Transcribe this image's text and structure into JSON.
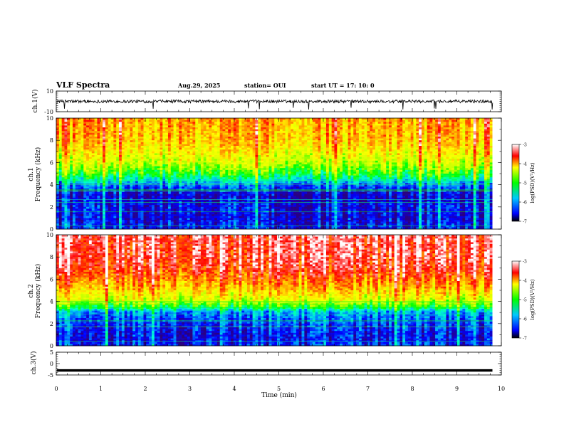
{
  "header": {
    "title": "VLF Spectra",
    "date": "Aug.29, 2025",
    "station": "station= OUI",
    "start_ut": "start  UT =   17: 10: 0"
  },
  "chart_data": [
    {
      "id": "ch1-waveform",
      "type": "line",
      "ylabel": "ch.1(V)",
      "ylim": [
        -10,
        10
      ],
      "yticks": [
        "10",
        "-10"
      ],
      "xlim": [
        0,
        10
      ],
      "series": [
        {
          "trace_color": "#000000",
          "baseline": 0,
          "noise_amplitude": 1.5,
          "spike_min": -8
        }
      ]
    },
    {
      "id": "ch1-spectrogram",
      "type": "heatmap",
      "ylabel_top": "ch.1",
      "ylabel": "Frequency  (kHz)",
      "ylim": [
        0,
        10
      ],
      "yticks": [
        "0",
        "2",
        "4",
        "6",
        "8",
        "10"
      ],
      "xlim": [
        0,
        10
      ],
      "data_end_min": 9.8,
      "colorbar": {
        "label": "log(PSD)(V²/Hz)",
        "ticks": [
          "-3",
          "-4",
          "-5",
          "-6",
          "-7"
        ],
        "range": [
          -7,
          -3
        ]
      },
      "profile_khz": [
        0,
        0.5,
        1,
        2,
        3,
        3.5,
        4,
        4.5,
        5,
        6,
        7,
        8,
        10
      ],
      "profile_level": [
        0.12,
        0.1,
        0.08,
        0.1,
        0.06,
        0.12,
        0.2,
        0.34,
        0.45,
        0.58,
        0.66,
        0.72,
        0.76
      ]
    },
    {
      "id": "ch2-spectrogram",
      "type": "heatmap",
      "ylabel_top": "ch.2",
      "ylabel": "Frequency  (kHz)",
      "ylim": [
        0,
        10
      ],
      "yticks": [
        "0",
        "2",
        "4",
        "6",
        "8",
        "10"
      ],
      "xlim": [
        0,
        10
      ],
      "data_end_min": 9.8,
      "colorbar": {
        "label": "log(PSD)(V²/Hz)",
        "ticks": [
          "-3",
          "-4",
          "-5",
          "-6",
          "-7"
        ],
        "range": [
          -7,
          -3
        ]
      },
      "profile_khz": [
        0,
        0.5,
        1,
        2,
        3,
        3.5,
        4,
        4.5,
        5,
        6,
        7,
        8,
        10
      ],
      "profile_level": [
        0.14,
        0.1,
        0.1,
        0.14,
        0.22,
        0.42,
        0.58,
        0.64,
        0.7,
        0.8,
        0.88,
        0.9,
        0.92
      ]
    },
    {
      "id": "ch3-waveform",
      "type": "line",
      "ylabel": "ch.3(V)",
      "ylim": [
        -5,
        5
      ],
      "yticks": [
        "5",
        "0",
        "-5"
      ],
      "xlim": [
        0,
        10
      ],
      "series": [
        {
          "trace_color": "#000000",
          "baseline": -3
        }
      ]
    }
  ],
  "x_axis": {
    "label": "Time  (min)",
    "ticks": [
      "0",
      "1",
      "2",
      "3",
      "4",
      "5",
      "6",
      "7",
      "8",
      "9",
      "10"
    ]
  },
  "colormap": [
    "#2a0080",
    "#0000ff",
    "#00a0ff",
    "#00ffd0",
    "#00ff00",
    "#c8ff00",
    "#ffff00",
    "#ff9000",
    "#ff0000",
    "#ffffff"
  ]
}
